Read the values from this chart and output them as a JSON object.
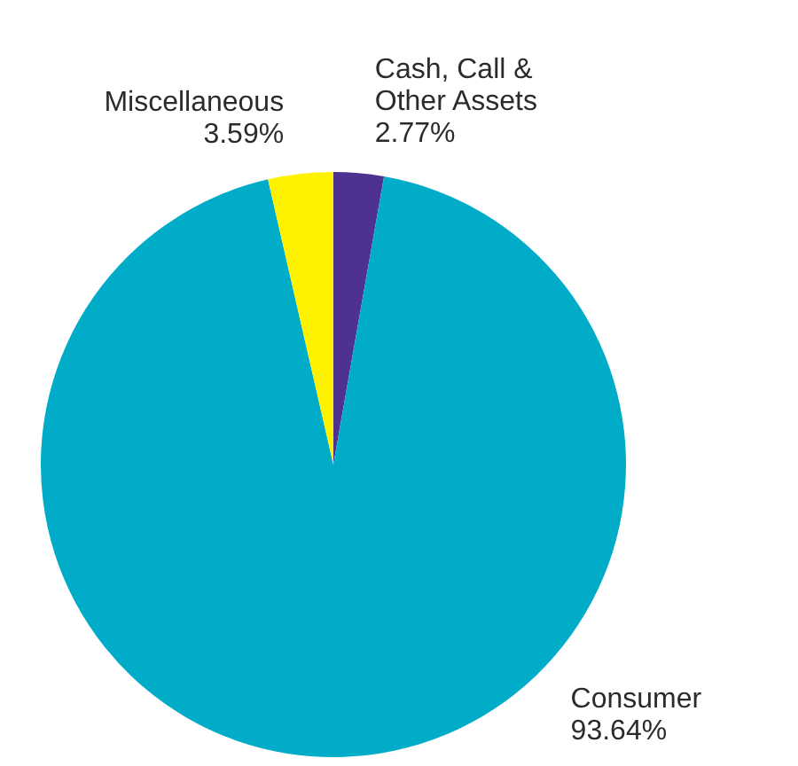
{
  "chart_data": {
    "type": "pie",
    "categories": [
      "Cash, Call & Other Assets",
      "Consumer",
      "Miscellaneous"
    ],
    "values": [
      2.77,
      93.64,
      3.59
    ],
    "colors": [
      "#4f3290",
      "#00acc8",
      "#fff200"
    ],
    "value_labels": [
      "2.77%",
      "93.64%",
      "3.59%"
    ],
    "legend": false
  }
}
